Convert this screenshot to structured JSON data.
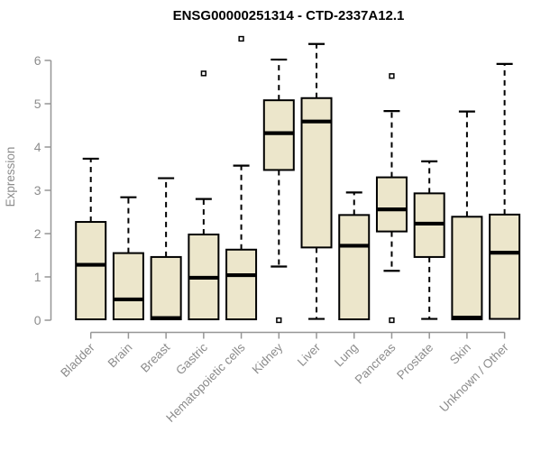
{
  "title": "ENSG00000251314 - CTD-2337A12.1",
  "colors": {
    "background": "#FFFFFF",
    "box_fill": "#ECE6CB",
    "box_border": "#000000",
    "median_line": "#000000",
    "whisker": "#000000",
    "outlier_border": "#000000",
    "outlier_fill": "#FFFFFF",
    "axis": "#969696",
    "axis_text": "#8C8C8C",
    "title_text": "#000000"
  },
  "chart_data": {
    "type": "boxplot",
    "title": "ENSG00000251314 - CTD-2337A12.1",
    "xlabel": "",
    "ylabel": "Expression",
    "ylim": [
      0,
      6.6
    ],
    "yticks": [
      0,
      1,
      2,
      3,
      4,
      5,
      6
    ],
    "grid": false,
    "legend": "none",
    "categories": [
      "Bladder",
      "Brain",
      "Breast",
      "Gastric",
      "Hematopoietic cells",
      "Kidney",
      "Liver",
      "Lung",
      "Pancreas",
      "Prostate",
      "Skin",
      "Unknown / Other"
    ],
    "boxes": [
      {
        "label": "Bladder",
        "whislo": null,
        "q1": 0.02,
        "med": 1.28,
        "q3": 2.27,
        "whishi": 3.73,
        "outliers": []
      },
      {
        "label": "Brain",
        "whislo": null,
        "q1": 0.02,
        "med": 0.48,
        "q3": 1.55,
        "whishi": 2.84,
        "outliers": []
      },
      {
        "label": "Breast",
        "whislo": null,
        "q1": 0.02,
        "med": 0.05,
        "q3": 1.46,
        "whishi": 3.28,
        "outliers": []
      },
      {
        "label": "Gastric",
        "whislo": null,
        "q1": 0.02,
        "med": 0.98,
        "q3": 1.98,
        "whishi": 2.8,
        "outliers": [
          5.7
        ]
      },
      {
        "label": "Hematopoietic cells",
        "whislo": null,
        "q1": 0.02,
        "med": 1.04,
        "q3": 1.63,
        "whishi": 3.57,
        "outliers": [
          6.5
        ]
      },
      {
        "label": "Kidney",
        "whislo": 1.24,
        "q1": 3.47,
        "med": 4.32,
        "q3": 5.08,
        "whishi": 6.02,
        "outliers": [
          0.0
        ]
      },
      {
        "label": "Liver",
        "whislo": 0.03,
        "q1": 1.68,
        "med": 4.59,
        "q3": 5.13,
        "whishi": 6.38,
        "outliers": []
      },
      {
        "label": "Lung",
        "whislo": null,
        "q1": 0.02,
        "med": 1.72,
        "q3": 2.43,
        "whishi": 2.95,
        "outliers": []
      },
      {
        "label": "Pancreas",
        "whislo": 1.14,
        "q1": 2.05,
        "med": 2.56,
        "q3": 3.3,
        "whishi": 4.83,
        "outliers": [
          5.64,
          0.0
        ]
      },
      {
        "label": "Prostate",
        "whislo": 0.03,
        "q1": 1.46,
        "med": 2.23,
        "q3": 2.93,
        "whishi": 3.67,
        "outliers": []
      },
      {
        "label": "Skin",
        "whislo": null,
        "q1": 0.02,
        "med": 0.06,
        "q3": 2.39,
        "whishi": 4.82,
        "outliers": []
      },
      {
        "label": "Unknown / Other",
        "whislo": null,
        "q1": 0.03,
        "med": 1.56,
        "q3": 2.44,
        "whishi": 5.92,
        "outliers": []
      }
    ]
  }
}
